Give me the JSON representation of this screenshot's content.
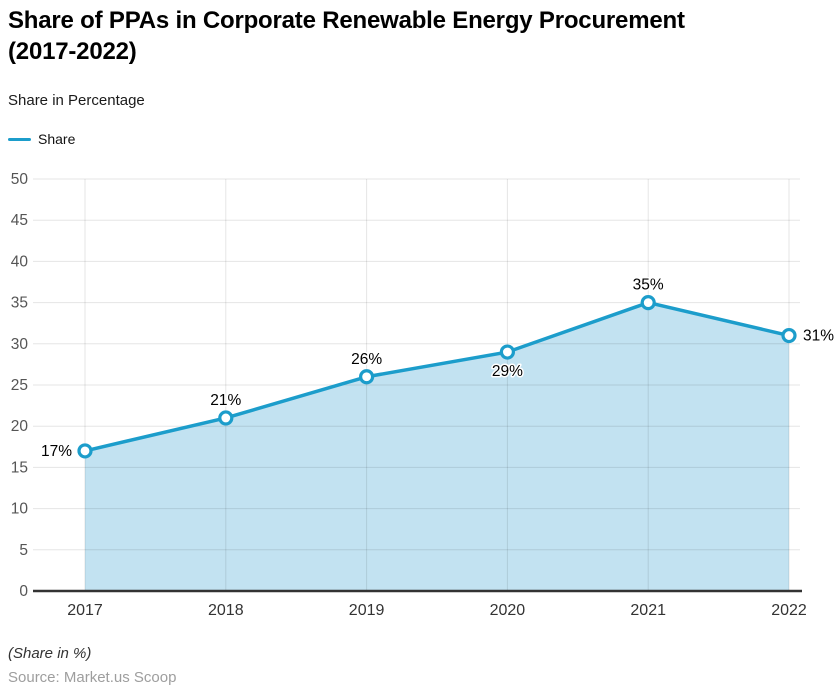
{
  "header": {
    "title_line1": "Share of PPAs in Corporate Renewable Energy Procurement",
    "title_line2": "(2017-2022)",
    "subtitle": "Share in Percentage"
  },
  "legend": {
    "label": "Share"
  },
  "colors": {
    "line": "#1C9DCB",
    "area": "#C2E2F1",
    "axis": "#333333",
    "ytick_text": "#555555",
    "xtick_text": "#333333",
    "point_label_text": "#000000",
    "source_text": "#9E9E9E"
  },
  "footer": {
    "note": "(Share in %)",
    "source": "Source: Market.us Scoop"
  },
  "chart_data": {
    "type": "area",
    "title": "Share of PPAs in Corporate Renewable Energy Procurement (2017-2022)",
    "subtitle": "Share in Percentage",
    "categories": [
      "2017",
      "2018",
      "2019",
      "2020",
      "2021",
      "2022"
    ],
    "series": [
      {
        "name": "Share",
        "values": [
          17,
          21,
          26,
          29,
          35,
          31
        ]
      }
    ],
    "point_labels": [
      "17%",
      "21%",
      "26%",
      "29%",
      "35%",
      "31%"
    ],
    "xlabel": "",
    "ylabel": "Share in Percentage",
    "ylim": [
      0,
      50
    ],
    "ytick_step": 5,
    "grid": true,
    "legend_position": "top-left",
    "label_placement": [
      "left",
      "top",
      "top",
      "bottom",
      "top",
      "right"
    ],
    "footnote": "(Share in %)",
    "source": "Source: Market.us Scoop"
  }
}
